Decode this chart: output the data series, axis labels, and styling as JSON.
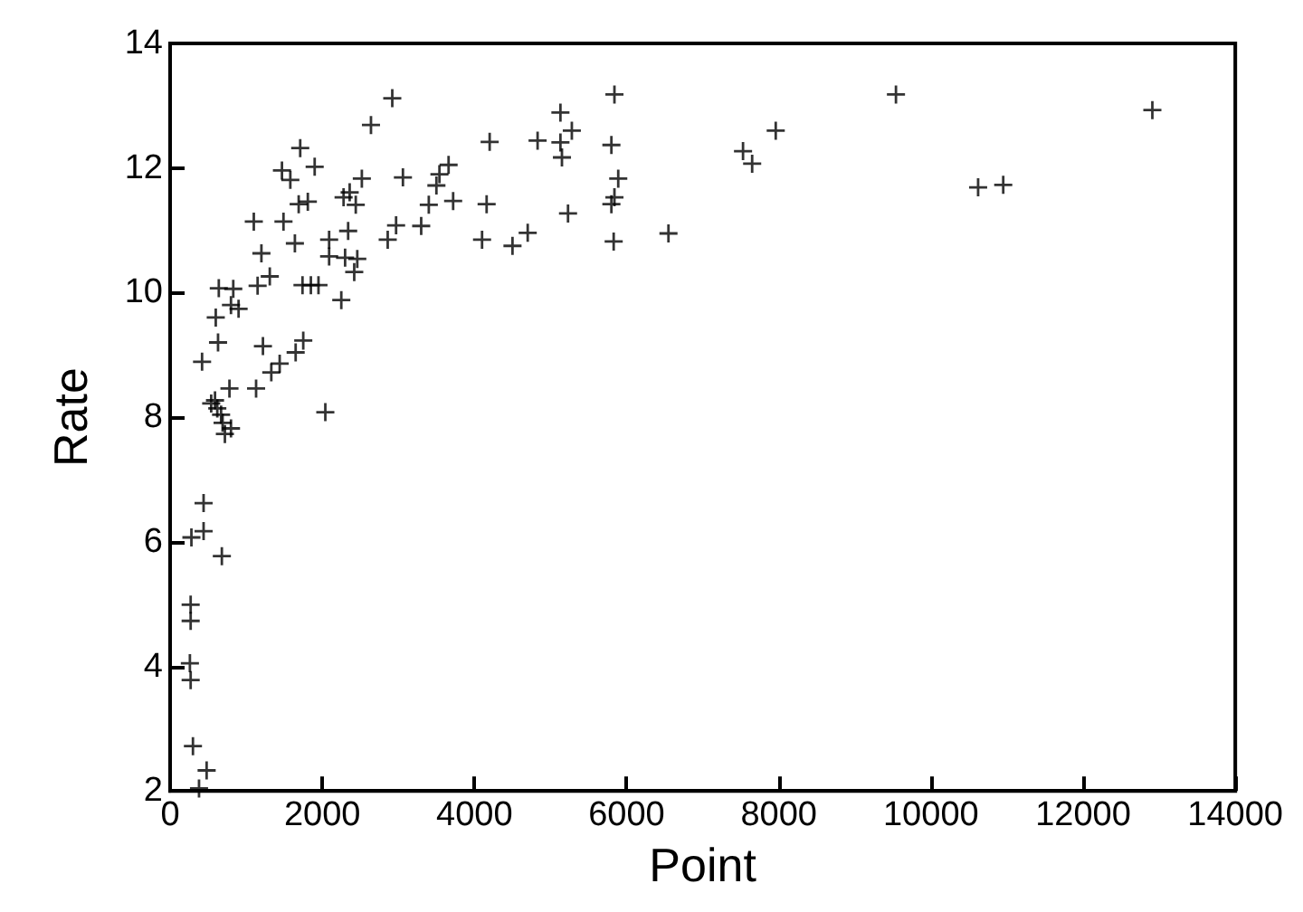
{
  "chart_data": {
    "type": "scatter",
    "xlabel": "Point",
    "ylabel": "Rate",
    "marker": "cross",
    "grid": false,
    "xlim": [
      0,
      14000
    ],
    "xticks": [
      0,
      2000,
      4000,
      6000,
      8000,
      10000,
      12000,
      14000
    ],
    "ylim": [
      2,
      14
    ],
    "yticks": [
      2,
      4,
      6,
      8,
      10,
      12,
      14
    ],
    "series": [
      {
        "color": "#000000",
        "x": [
          2920,
          2640,
          1710,
          4200,
          4830,
          1470,
          1580,
          1900,
          2520,
          3060,
          3660,
          3540,
          3500,
          1690,
          1810,
          2280,
          2360,
          2440,
          3400,
          3720,
          4160,
          1100,
          1490,
          2340,
          2970,
          3300,
          4700,
          4100,
          4500,
          2860,
          1640,
          2090,
          1200,
          2090,
          2300,
          2460,
          2420,
          1310,
          1150,
          1740,
          1850,
          1950,
          640,
          830,
          2250,
          800,
          900,
          600,
          630,
          1220,
          1750,
          1650,
          1440,
          1330,
          420,
          780,
          1130,
          2040,
          540,
          590,
          620,
          670,
          690,
          800,
          720,
          440,
          280,
          440,
          680,
          270,
          270,
          260,
          270,
          300,
          480,
          380,
          5840,
          5130,
          5280,
          5130,
          5800,
          5150,
          5890,
          5840,
          5800,
          5230,
          5830,
          6550,
          7960,
          7530,
          7650,
          9540,
          10620,
          10950,
          12910
        ],
        "values": [
          13.12,
          12.69,
          12.32,
          12.42,
          12.44,
          11.96,
          11.81,
          12.02,
          11.83,
          11.85,
          12.05,
          11.9,
          11.72,
          11.42,
          11.46,
          11.53,
          11.61,
          11.41,
          11.41,
          11.47,
          11.42,
          11.14,
          11.14,
          10.99,
          11.08,
          11.07,
          10.96,
          10.85,
          10.75,
          10.85,
          10.79,
          10.85,
          10.63,
          10.58,
          10.56,
          10.54,
          10.33,
          10.26,
          10.11,
          10.12,
          10.12,
          10.12,
          10.07,
          10.06,
          9.88,
          9.8,
          9.74,
          9.6,
          9.2,
          9.14,
          9.23,
          9.04,
          8.86,
          8.72,
          8.89,
          8.46,
          8.46,
          8.08,
          8.22,
          8.27,
          8.14,
          8.04,
          7.91,
          7.82,
          7.73,
          6.62,
          6.07,
          6.17,
          5.77,
          4.99,
          4.73,
          4.05,
          3.78,
          2.72,
          2.33,
          2.04,
          13.18,
          12.89,
          12.6,
          12.41,
          12.37,
          12.17,
          11.83,
          11.53,
          11.42,
          11.27,
          10.82,
          10.95,
          12.6,
          12.27,
          12.07,
          13.18,
          11.69,
          11.73,
          12.93
        ]
      }
    ]
  }
}
